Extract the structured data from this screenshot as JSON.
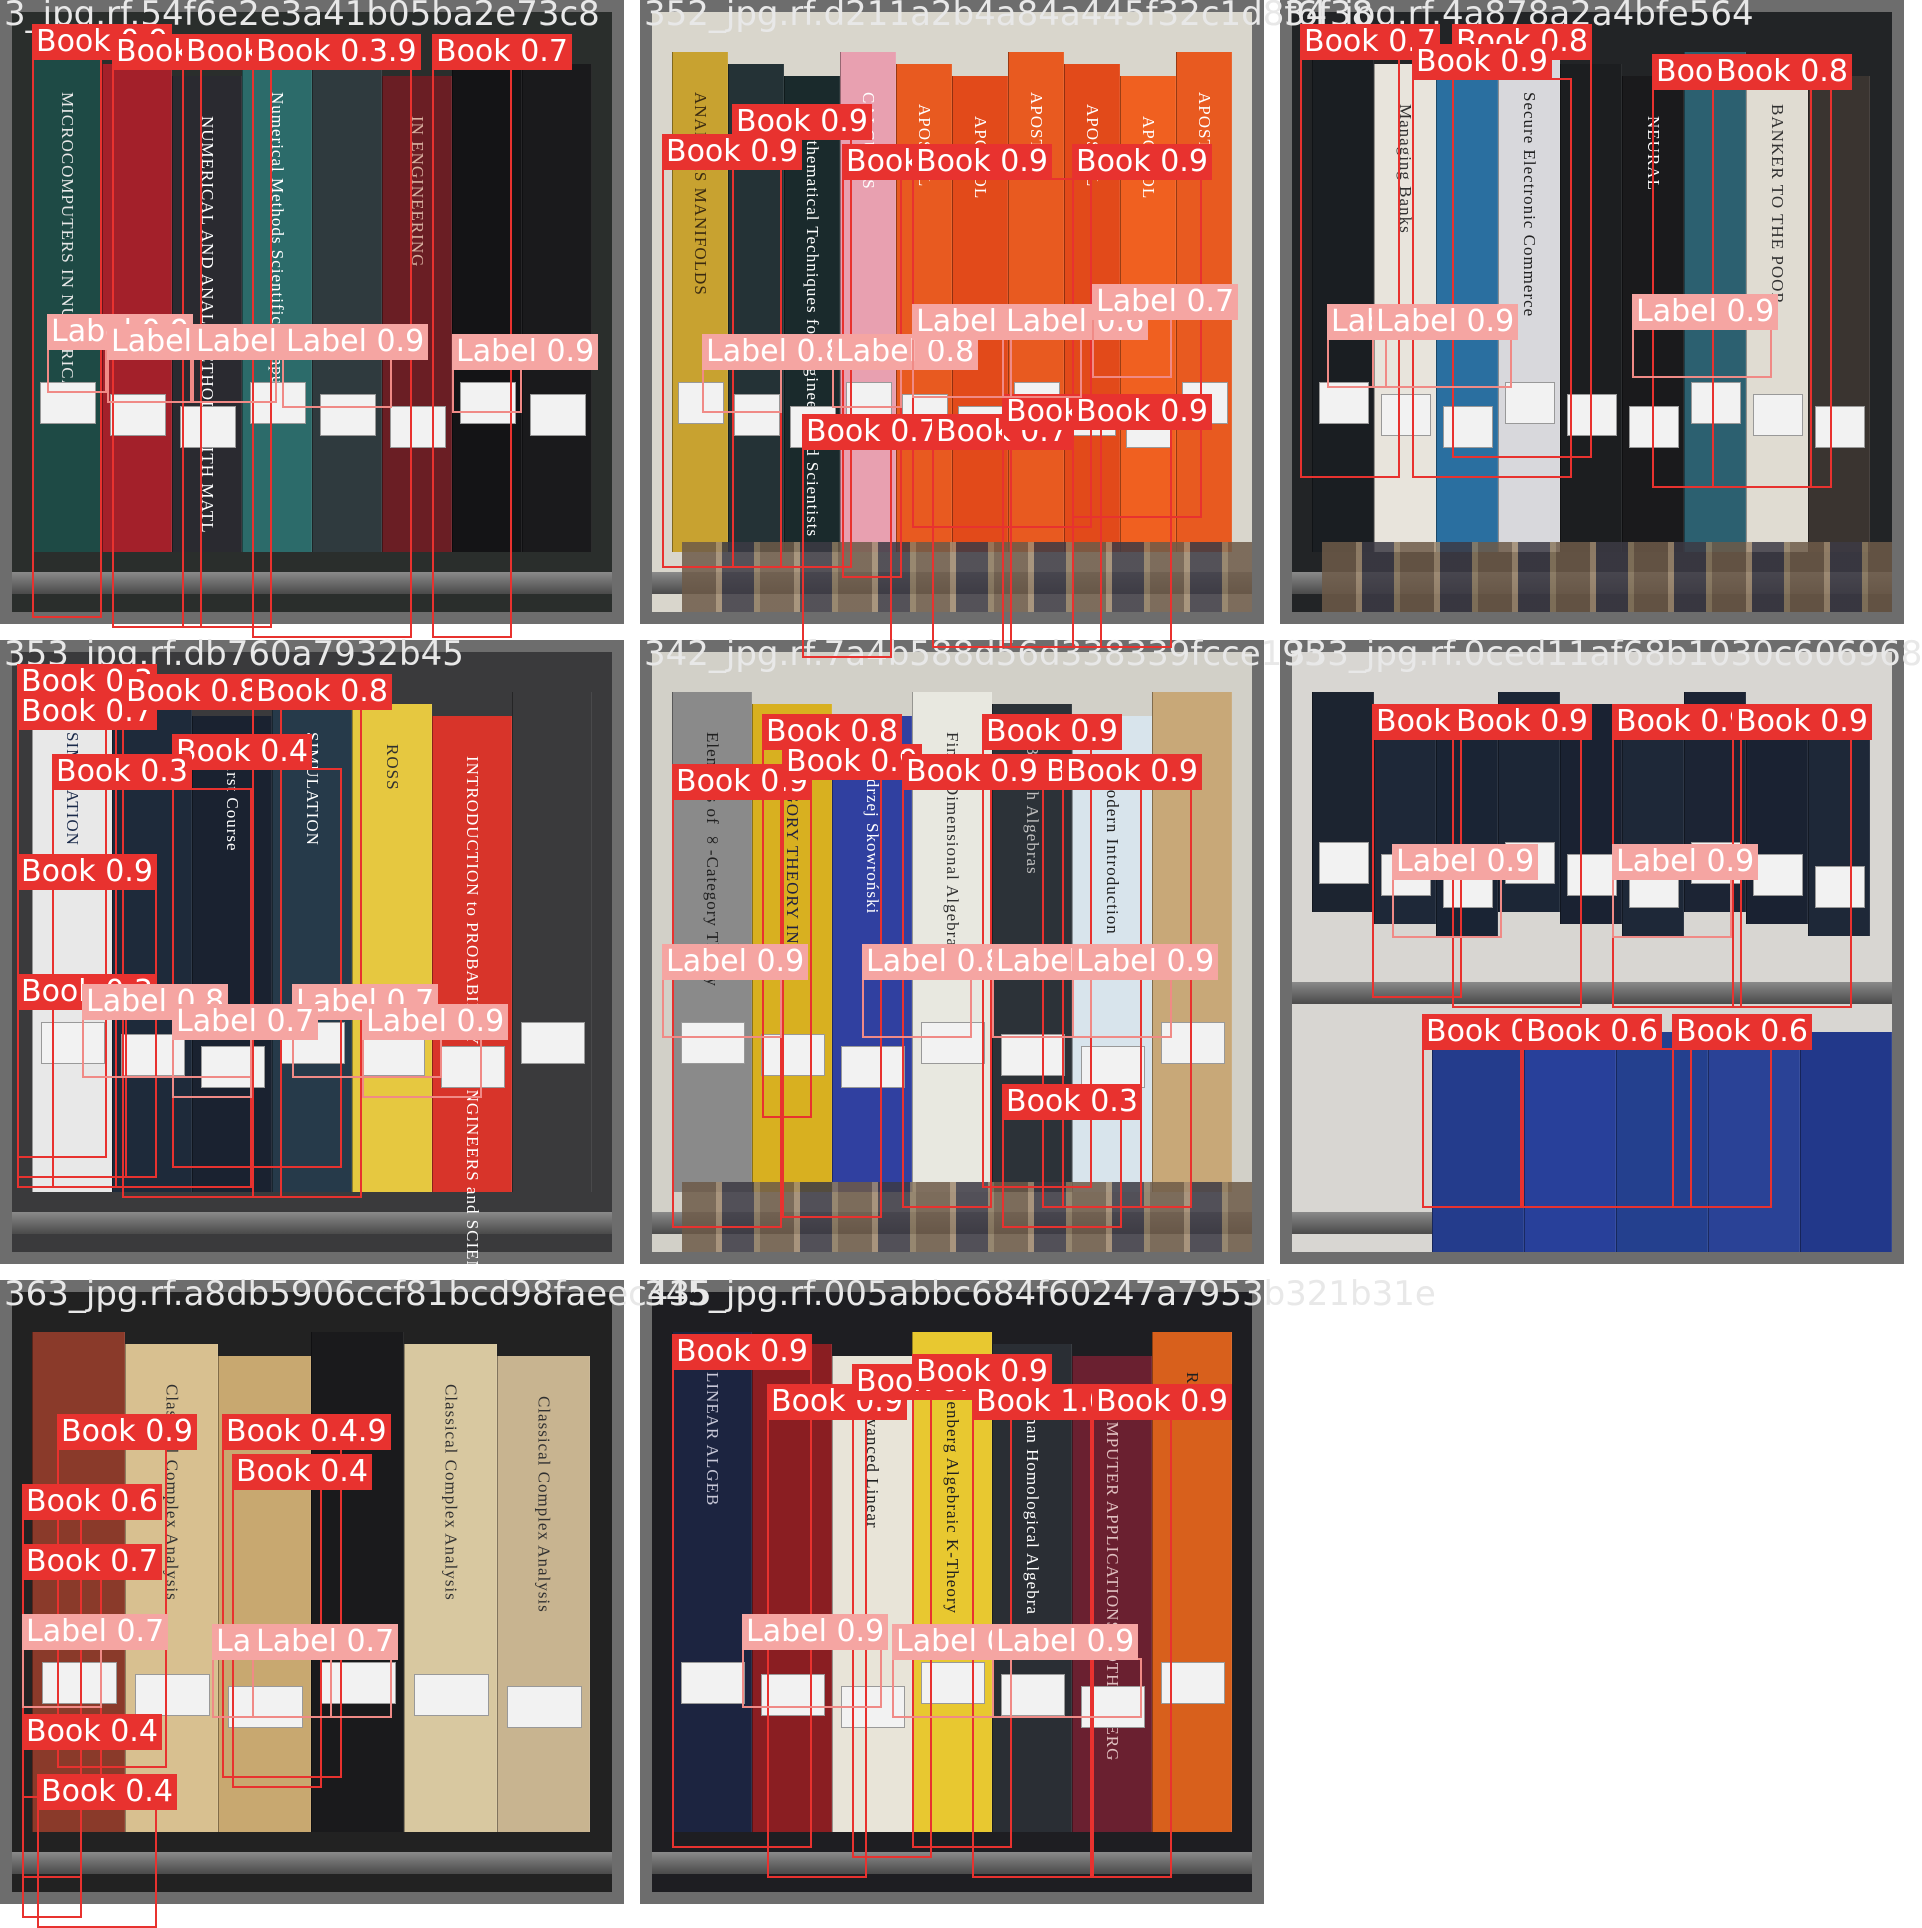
{
  "grid": [
    {
      "filename": "3_jpg.rf.54f6e2e3a41b05ba2e73c8",
      "bg": "#2a2e2c",
      "spines": [
        "#1e4a45",
        "#a3202a",
        "#2a2a30",
        "#2c6b6a",
        "#2f3a3e",
        "#6a1e24",
        "#141416",
        "#1a1a1c"
      ],
      "spine_texts": [
        "MICROCOMPUTERS IN NUMERICAL",
        "",
        "NUMERICAL AND ANAL. METHODS WITH MATL",
        "Numerical Methods Scientific Computing",
        "",
        "IN ENGINEERING",
        "",
        ""
      ],
      "spine_text_colors": [
        "#e8e8e8",
        "#f0e0e0",
        "#ffffff",
        "#ffffff",
        "#ffffff",
        "#d8b0a0",
        "#ffffff",
        "#ffffff"
      ],
      "shelf_rows": [],
      "has_paper_tops": false,
      "detections": [
        {
          "label": "Book 0.9"
        },
        {
          "label": "Book 0.9"
        },
        {
          "label": "Book 0.9"
        },
        {
          "label": "Book 0.3.9"
        },
        {
          "label": "Book 0.7"
        },
        {
          "label": "Label 0.9"
        },
        {
          "label": "Label 0.9"
        },
        {
          "label": "Label 0.9"
        },
        {
          "label": "Label 0.9"
        },
        {
          "label": "Label 0.9"
        }
      ]
    },
    {
      "filename": "352_jpg.rf.d211a2b4a84a445f32c1d8f6f38",
      "bg": "#d9d6cc",
      "spines": [
        "#c8a230",
        "#243236",
        "#1a2a2c",
        "#e8a0b0",
        "#e85a20",
        "#e24a1a",
        "#e85a20",
        "#e24a1a",
        "#f06020",
        "#e85a20"
      ],
      "spine_texts": [
        "ANALYSIS MANIFOLDS",
        "",
        "Mathematical Techniques for Engineers and Scientists",
        "CALCULUS",
        "APOSTOL",
        "APOSTOL",
        "APOSTOL",
        "APOSTOL",
        "APOSTOL",
        "APOSTOL"
      ],
      "spine_text_colors": [
        "#3a2a10",
        "#ffffff",
        "#ffffff",
        "#ffffff",
        "#ffffff",
        "#ffffff",
        "#ffffff",
        "#ffffff",
        "#ffffff",
        "#ffffff"
      ],
      "shelf_rows": [],
      "has_paper_tops": true,
      "detections": [
        {
          "label": "Book 0.9"
        },
        {
          "label": "Book 0.9"
        },
        {
          "label": "Book 0.9"
        },
        {
          "label": "Book 0.9"
        },
        {
          "label": "Book 0.9"
        },
        {
          "label": "Book 0.7"
        },
        {
          "label": "Book 0.7"
        },
        {
          "label": "Book 0.3"
        },
        {
          "label": "Book 0.9"
        },
        {
          "label": "Label 0.8"
        },
        {
          "label": "Label 0.8"
        },
        {
          "label": "Label 0.4"
        },
        {
          "label": "Label 0.6"
        },
        {
          "label": "Label 0.7"
        }
      ]
    },
    {
      "filename": "34_jpg.rf.4a878a2a4bfe564",
      "bg": "#222426",
      "spines": [
        "#1a1e22",
        "#e8e4dc",
        "#2a6fa0",
        "#d8d8dc",
        "#1c1e20",
        "#1a1a1c",
        "#2c6070",
        "#e0dcd2",
        "#3a3430"
      ],
      "spine_texts": [
        "",
        "Managing Banks",
        "",
        "Secure Electronic Commerce",
        "",
        "NEURAL",
        "",
        "BANKER TO THE POOR",
        ""
      ],
      "spine_text_colors": [
        "#ffffff",
        "#303030",
        "#ffffff",
        "#202020",
        "#ffffff",
        "#ffffff",
        "#ffffff",
        "#303030",
        "#ffffff"
      ],
      "shelf_rows": [],
      "has_paper_tops": true,
      "detections": [
        {
          "label": "Book 0.7"
        },
        {
          "label": "Book 0.8"
        },
        {
          "label": "Book 0.9"
        },
        {
          "label": "Book 0.9"
        },
        {
          "label": "Book 0.8"
        },
        {
          "label": "Label 0.7"
        },
        {
          "label": "Label 0.9"
        },
        {
          "label": "Label 0.9"
        }
      ]
    },
    {
      "filename": "353_jpg.rf.db760a7932b45",
      "bg": "#3a3a3c",
      "spines": [
        "#e8e8e8",
        "#1e2a3a",
        "#1a2230",
        "#263a4a",
        "#e6c840",
        "#d8342a",
        "#3a3a3c"
      ],
      "spine_texts": [
        "SIMULATION",
        "",
        "First Course",
        "SIMULATION",
        "ROSS",
        "INTRODUCTION to PROBABILITY for ENGINEERS and SCIENTISTS",
        ""
      ],
      "spine_text_colors": [
        "#1a2a4a",
        "#ffffff",
        "#ffffff",
        "#ffffff",
        "#303030",
        "#ffffff",
        "#ffffff"
      ],
      "shelf_rows": [],
      "has_paper_tops": false,
      "detections": [
        {
          "label": "Book 0.3"
        },
        {
          "label": "Book 0.7"
        },
        {
          "label": "Book 0.8"
        },
        {
          "label": "Book 0.8"
        },
        {
          "label": "Book 0.4"
        },
        {
          "label": "Book 0.3"
        },
        {
          "label": "Book 0.9"
        },
        {
          "label": "Book 0.3"
        },
        {
          "label": "Label 0.8"
        },
        {
          "label": "Label 0.7"
        },
        {
          "label": "Label 0.7"
        },
        {
          "label": "Label 0.9"
        }
      ]
    },
    {
      "filename": "342_jpg.rf.7a4b588d56d338339fcce195",
      "bg": "#d2d0c8",
      "spines": [
        "#8a8a8a",
        "#d8b020",
        "#3040a0",
        "#e8e8e0",
        "#2c3238",
        "#d8e4ec",
        "#c8a878"
      ],
      "spine_texts": [
        "Elements of ∞-Category Theory",
        "CATEGORY THEORY IN",
        "Andrzej Skowroński",
        "Finite Dimensional Algebras",
        "Banach Algebras",
        "A Modern Introduction",
        ""
      ],
      "spine_text_colors": [
        "#202020",
        "#202040",
        "#ffffff",
        "#303030",
        "#c0c0c0",
        "#202020",
        "#303030"
      ],
      "shelf_rows": [],
      "has_paper_tops": true,
      "detections": [
        {
          "label": "Book 0.8"
        },
        {
          "label": "Book 0.9"
        },
        {
          "label": "Book 0.9"
        },
        {
          "label": "Book 0.9"
        },
        {
          "label": "Book 0.9"
        },
        {
          "label": "Book 0.9"
        },
        {
          "label": "Book 0.9"
        },
        {
          "label": "Book 0.3"
        },
        {
          "label": "Label 0.9"
        },
        {
          "label": "Label 0.8"
        },
        {
          "label": "Label 0.8"
        },
        {
          "label": "Label 0.9"
        }
      ]
    },
    {
      "filename": "333_jpg.rf.0ced11af68b1030c606968",
      "bg": "#d8d6d2",
      "spines": [
        "#1c2430",
        "#1e2838",
        "#1a2434",
        "#1c2636",
        "#1a2232",
        "#1e2838",
        "#1c2434",
        "#1a2232",
        "#1e2838"
      ],
      "spine_texts": [
        "",
        "",
        "",
        "",
        "",
        "",
        "",
        "",
        ""
      ],
      "spine_text_colors": [
        "#c8a040",
        "#c8a040",
        "#c8a040",
        "#c8a040",
        "#c8a040",
        "#c8a040",
        "#c8a040",
        "#c8a040",
        "#c8a040"
      ],
      "shelf_rows": [
        "#243c8c",
        "#28409a",
        "#24408e",
        "#2a4296",
        "#22388a"
      ],
      "has_paper_tops": false,
      "detections": [
        {
          "label": "Book 0.9"
        },
        {
          "label": "Book 0.9"
        },
        {
          "label": "Book 0.9"
        },
        {
          "label": "Book 0.9"
        },
        {
          "label": "Book 0.5"
        },
        {
          "label": "Book 0.6"
        },
        {
          "label": "Book 0.6"
        },
        {
          "label": "Label 0.9"
        },
        {
          "label": "Label 0.9"
        }
      ]
    },
    {
      "filename": "363_jpg.rf.a8db5906ccf81bcd98faeec435",
      "bg": "#222222",
      "spines": [
        "#8a3a2a",
        "#d8c090",
        "#c8a870",
        "#1a1a1c",
        "#d8c8a0",
        "#c8b490"
      ],
      "spine_texts": [
        "",
        "Classical Complex Analysis",
        "",
        "",
        "Classical Complex Analysis",
        "Classical Complex Analysis"
      ],
      "spine_text_colors": [
        "#ffffff",
        "#303030",
        "#303030",
        "#ffffff",
        "#303030",
        "#303030"
      ],
      "shelf_rows": [],
      "has_paper_tops": false,
      "detections": [
        {
          "label": "Book 0.9"
        },
        {
          "label": "Book 0.4.9"
        },
        {
          "label": "Book 0.4"
        },
        {
          "label": "Book 0.6"
        },
        {
          "label": "Book 0.7"
        },
        {
          "label": "Book 0.4"
        },
        {
          "label": "Book 0.4"
        },
        {
          "label": "Label 0.7"
        },
        {
          "label": "Label 0.9"
        },
        {
          "label": "Label 0.7"
        }
      ]
    },
    {
      "filename": "345_jpg.rf.005abbc684f60247a7953b321b31e",
      "bg": "#1e1e22",
      "spines": [
        "#1c2440",
        "#8a1e22",
        "#e8e4d8",
        "#e8c830",
        "#2a2e34",
        "#6a2030",
        "#d8601c"
      ],
      "spine_texts": [
        "LINEAR ALGEB",
        "",
        "Advanced Linear",
        "Rosenberg Algebraic K-Theory",
        "Rotman Homological Algebra",
        "COMPUTER APPLICATIONS ROTHENBERG",
        "Runde"
      ],
      "spine_text_colors": [
        "#c8c8d8",
        "#ffffff",
        "#202020",
        "#202020",
        "#ffffff",
        "#e0c0c0",
        "#202020"
      ],
      "shelf_rows": [],
      "has_paper_tops": false,
      "detections": [
        {
          "label": "Book 0.9"
        },
        {
          "label": "Book 0.9"
        },
        {
          "label": "Book 0.9"
        },
        {
          "label": "Book 0.9"
        },
        {
          "label": "Book 1.0"
        },
        {
          "label": "Book 0.9"
        },
        {
          "label": "Label 0.9"
        },
        {
          "label": "Label 0.9"
        },
        {
          "label": "Label 0.9"
        }
      ]
    }
  ]
}
